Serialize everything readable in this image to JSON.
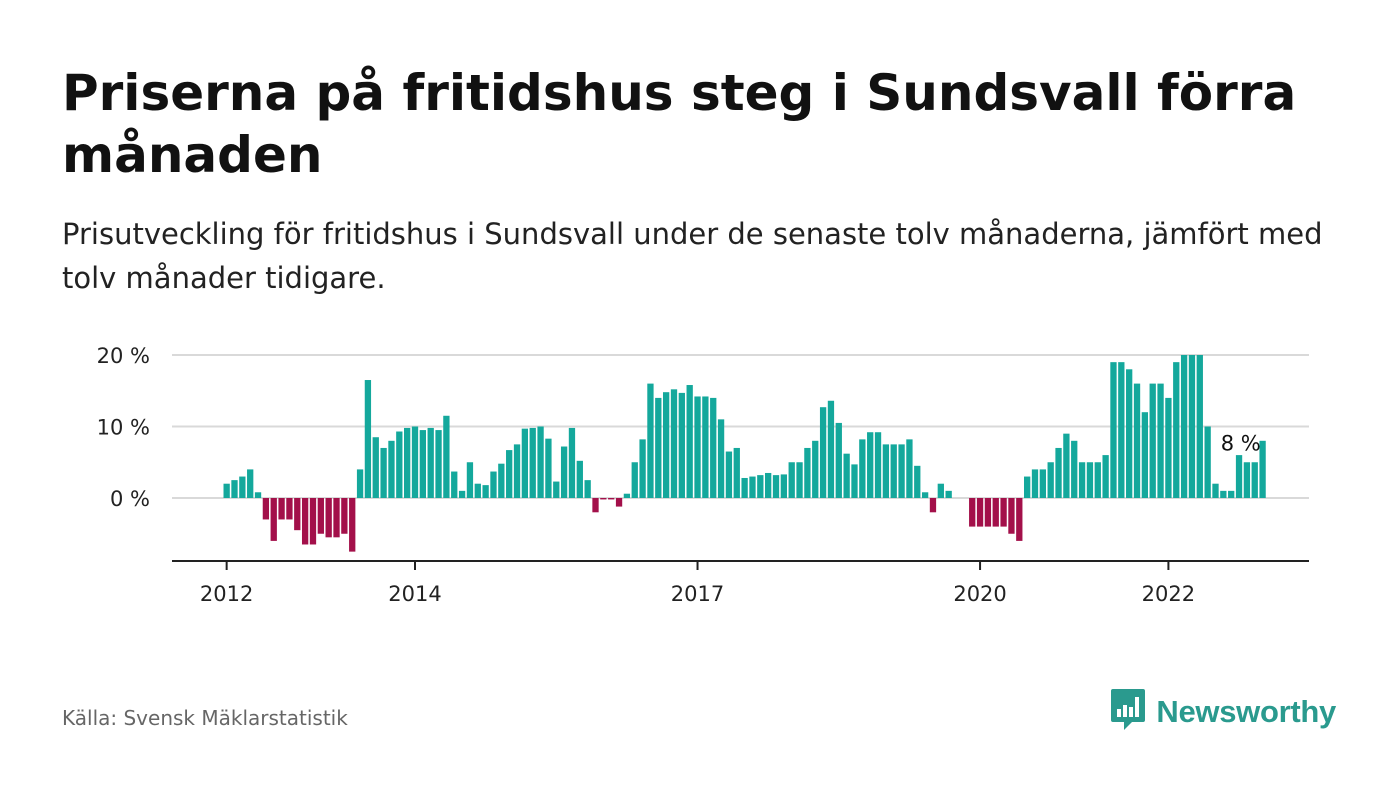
{
  "title": "Priserna på fritidshus steg i Sundsvall förra månaden",
  "subtitle": "Prisutveckling för fritidshus i Sundsvall under de senaste tolv månaderna, jämfört med tolv månader tidigare.",
  "source": "Källa: Svensk Mäklarstatistik",
  "brand": {
    "name": "Newsworthy",
    "icon": "newsworthy-logo-icon"
  },
  "colors": {
    "positive": "#14a89c",
    "negative": "#a3104a",
    "grid": "#d9d9d9",
    "axis": "#222222"
  },
  "chart_data": {
    "type": "bar",
    "y_unit": "%",
    "ylim": [
      -8.5,
      20
    ],
    "yticks": [
      0,
      10,
      20
    ],
    "ytick_labels": [
      "0 %",
      "10 %",
      "20 %"
    ],
    "grid": true,
    "xticks": [
      {
        "label": "2012",
        "index": 0
      },
      {
        "label": "2014",
        "index": 24
      },
      {
        "label": "2017",
        "index": 60
      },
      {
        "label": "2020",
        "index": 96
      },
      {
        "label": "2022",
        "index": 120
      }
    ],
    "annotation": {
      "label": "8 %",
      "index": 131
    },
    "values": [
      2,
      2.5,
      3,
      4,
      0.8,
      -3,
      -6,
      -3,
      -3,
      -4.5,
      -6.5,
      -6.5,
      -5,
      -5.5,
      -5.5,
      -5,
      -7.5,
      4,
      16.5,
      8.5,
      7,
      8,
      9.3,
      9.8,
      10,
      9.5,
      9.8,
      9.5,
      11.5,
      3.7,
      1,
      5,
      2,
      1.8,
      3.7,
      4.8,
      6.7,
      7.5,
      9.7,
      9.8,
      10,
      8.3,
      2.3,
      7.2,
      9.8,
      5.2,
      2.5,
      -2,
      -0.2,
      -0.2,
      -1.2,
      0.6,
      5,
      8.2,
      16,
      14,
      14.8,
      15.2,
      14.7,
      15.8,
      14.2,
      14.2,
      14,
      11,
      6.5,
      7,
      2.8,
      3,
      3.2,
      3.5,
      3.2,
      3.3,
      5,
      5,
      7,
      8,
      12.7,
      13.6,
      10.5,
      6.2,
      4.7,
      8.2,
      9.2,
      9.2,
      7.5,
      7.5,
      7.5,
      8.2,
      4.5,
      0.8,
      -2,
      2,
      1,
      null,
      null,
      -4,
      -4,
      -4,
      -4,
      -4,
      -5,
      -6,
      3,
      4,
      4,
      5,
      7,
      9,
      8,
      5,
      5,
      5,
      6,
      19,
      19,
      18,
      16,
      12,
      16,
      16,
      14,
      19,
      20,
      20,
      20,
      10,
      2,
      1,
      1,
      6,
      5,
      5,
      8
    ]
  }
}
